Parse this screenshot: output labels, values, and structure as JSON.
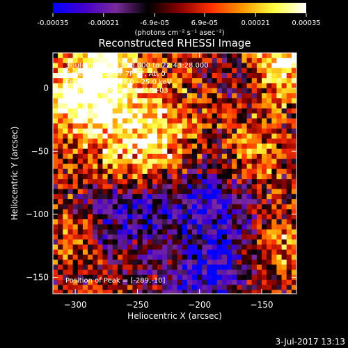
{
  "colorbar": {
    "ticks": [
      "-0.00035",
      "-0.00021",
      "-6.9e-05",
      "6.9e-05",
      "0.00021",
      "0.00035"
    ],
    "tick_values": [
      -0.00035,
      -0.00021,
      -6.9e-05,
      6.9e-05,
      0.00021,
      0.00035
    ],
    "range": [
      -0.00035,
      0.00035
    ],
    "unit_label": "(photons cm⁻² s⁻¹ asec⁻²)",
    "colormap": [
      "#0000ff",
      "#4400cc",
      "#7a2a9a",
      "#000000",
      "#8a0000",
      "#ff3000",
      "#ff9a00",
      "#ffff40",
      "#ffffff"
    ]
  },
  "chart_data": {
    "type": "heatmap",
    "title": "Reconstructed RHESSI Image",
    "xlabel": "Heliocentric X (arcsec)",
    "ylabel": "Heliocentric Y (arcsec)",
    "xlim": [
      -318,
      -122
    ],
    "ylim": [
      -163,
      28
    ],
    "xticks": [
      -300,
      -250,
      -200,
      -150
    ],
    "yticks": [
      0,
      -50,
      -100,
      -150
    ],
    "xtick_labels": [
      "−300",
      "−250",
      "−200",
      "−150"
    ],
    "ytick_labels": [
      "0",
      "−50",
      "−100",
      "−150"
    ],
    "annotations": [
      "3-Jul-2015 22:33:28.000 to 22:43:28.000",
      "Detectors: 3F 6F 7F 9F, Att 0",
      "Energy Range: 12.0 - 25.0 keV",
      "Clean     Total counts: 4.61E+03"
    ],
    "peak_label": "Position of Peak = [-289,-10]",
    "peak": [
      -289,
      -10
    ],
    "sources": [
      {
        "x": -245,
        "y": -42,
        "r": 30,
        "amp": 1.0
      },
      {
        "x": -300,
        "y": -5,
        "r": 22,
        "amp": 0.95
      },
      {
        "x": -275,
        "y": 20,
        "r": 18,
        "amp": 0.8
      },
      {
        "x": -140,
        "y": 20,
        "r": 22,
        "amp": 0.8
      },
      {
        "x": -160,
        "y": -55,
        "r": 18,
        "amp": 0.55
      },
      {
        "x": -140,
        "y": -120,
        "r": 18,
        "amp": 0.5
      },
      {
        "x": -215,
        "y": -125,
        "r": 16,
        "amp": 0.45
      },
      {
        "x": -300,
        "y": -115,
        "r": 15,
        "amp": 0.4
      }
    ],
    "negative_regions": [
      {
        "x": -205,
        "y": -95,
        "r": 35,
        "amp": 0.9
      },
      {
        "x": -270,
        "y": -95,
        "r": 22,
        "amp": 0.6
      },
      {
        "x": -200,
        "y": -150,
        "r": 22,
        "amp": 0.7
      },
      {
        "x": -170,
        "y": 10,
        "r": 14,
        "amp": 0.5
      }
    ]
  },
  "footer": {
    "timestamp": "3-Jul-2017 13:13"
  }
}
